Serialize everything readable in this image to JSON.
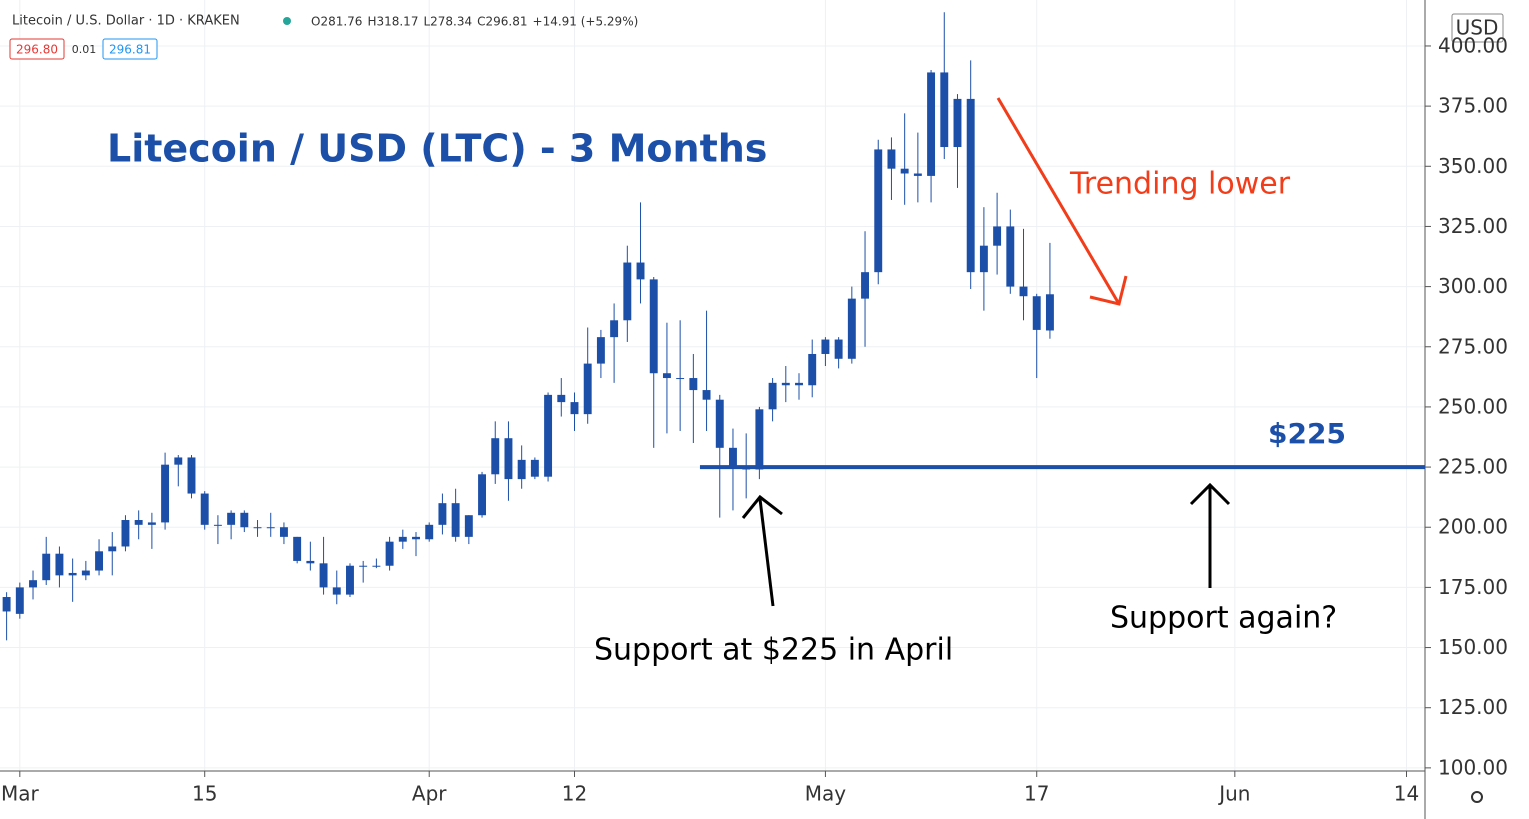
{
  "chart_data": {
    "type": "candlestick",
    "title": "Litecoin / USD (LTC) - 3 Months",
    "symbol": "Litecoin / U.S. Dollar · 1D · KRAKEN",
    "ohlc_readout": [
      "O281.76",
      "H318.17",
      "L278.34",
      "C296.81",
      "+14.91 (+5.29%)"
    ],
    "bid": "296.80",
    "spread": "0.01",
    "ask": "296.81",
    "currency": "USD",
    "color": "#1c4fa8",
    "x": [
      -1,
      0,
      1,
      2,
      3,
      4,
      5,
      6,
      7,
      8,
      9,
      10,
      11,
      12,
      13,
      14,
      15,
      16,
      17,
      18,
      19,
      20,
      21,
      22,
      23,
      24,
      25,
      26,
      27,
      28,
      29,
      30,
      31,
      32,
      33,
      34,
      35,
      36,
      37,
      38,
      39,
      40,
      41,
      42,
      43,
      44,
      45,
      46,
      47,
      48,
      49,
      50,
      51,
      52,
      53,
      54,
      55,
      56,
      57,
      58,
      59,
      60,
      61,
      62,
      63,
      64,
      65,
      66,
      67,
      68,
      69,
      70,
      71,
      72,
      73,
      74,
      75,
      76,
      77,
      78
    ],
    "open": [
      165,
      164,
      175,
      178,
      180,
      181,
      180,
      182,
      190,
      192,
      203,
      201,
      202,
      226,
      229,
      214,
      201,
      201,
      206,
      200,
      200,
      200,
      196,
      186,
      185,
      175,
      172,
      184,
      184,
      184,
      194,
      196,
      195,
      201,
      210,
      196,
      205,
      222,
      237,
      220,
      228,
      221,
      255,
      252,
      247,
      268,
      279,
      286,
      310,
      303,
      264,
      262,
      262,
      257,
      253,
      233,
      225,
      224,
      249,
      260,
      259,
      259,
      272,
      278,
      270,
      295,
      306,
      357,
      349,
      347,
      346,
      389,
      358,
      378,
      306,
      317,
      325,
      300,
      296,
      281.76
    ],
    "high": [
      173,
      177,
      182,
      196,
      192,
      187,
      186,
      195,
      198,
      205,
      207,
      206,
      231,
      230,
      230,
      215,
      205,
      207,
      207,
      203,
      206,
      202,
      196,
      194,
      196,
      182,
      185,
      186,
      187,
      196,
      199,
      198,
      202,
      214,
      216,
      205,
      223,
      244,
      244,
      234,
      229,
      256,
      262,
      256,
      283,
      282,
      293,
      317,
      335,
      304,
      285,
      286,
      272,
      290,
      255,
      241,
      239,
      250,
      262,
      267,
      264,
      278,
      279,
      279,
      300,
      323,
      361,
      362,
      372,
      364,
      390,
      414,
      380,
      394,
      333,
      339,
      332,
      324,
      297,
      318.17
    ],
    "low": [
      153,
      162,
      170,
      176,
      175,
      169,
      178,
      180,
      180,
      190,
      195,
      191,
      199,
      217,
      212,
      199,
      193,
      195,
      198,
      196,
      196,
      193,
      185,
      182,
      172,
      168,
      171,
      177,
      183,
      182,
      191,
      188,
      194,
      197,
      194,
      193,
      204,
      218,
      211,
      216,
      220,
      219,
      246,
      240,
      243,
      262,
      260,
      277,
      293,
      233,
      239,
      240,
      235,
      240,
      204,
      207,
      212,
      220,
      244,
      252,
      253,
      254,
      267,
      266,
      268,
      275,
      301,
      336,
      334,
      335,
      335,
      353,
      341,
      299,
      290,
      305,
      297,
      286,
      262,
      278.34
    ],
    "close": [
      171,
      175,
      178,
      189,
      189,
      180,
      182,
      190,
      192,
      203,
      201,
      202,
      226,
      229,
      214,
      201,
      201,
      206,
      200,
      200,
      200,
      196,
      186,
      185,
      175,
      172,
      184,
      184,
      184,
      194,
      196,
      195,
      201,
      210,
      196,
      205,
      222,
      237,
      220,
      228,
      221,
      255,
      252,
      247,
      268,
      279,
      286,
      310,
      303,
      264,
      262,
      262,
      257,
      253,
      233,
      225,
      224,
      249,
      260,
      259,
      260,
      272,
      278,
      270,
      295,
      306,
      357,
      349,
      347,
      346,
      389,
      358,
      378,
      306,
      317,
      325,
      300,
      296,
      282,
      296.81
    ],
    "xlim": [
      -1.5,
      106.4
    ],
    "xticks": [
      {
        "value": 0,
        "label": "Mar"
      },
      {
        "value": 14,
        "label": "15"
      },
      {
        "value": 31,
        "label": "Apr"
      },
      {
        "value": 42,
        "label": "12"
      },
      {
        "value": 61,
        "label": "May"
      },
      {
        "value": 77,
        "label": "17"
      },
      {
        "value": 92,
        "label": "Jun"
      },
      {
        "value": 105,
        "label": "14"
      }
    ],
    "ylim": [
      98.7,
      419.1
    ],
    "yticks": [
      {
        "value": 100,
        "label": "100.00"
      },
      {
        "value": 125,
        "label": "125.00"
      },
      {
        "value": 150,
        "label": "150.00"
      },
      {
        "value": 175,
        "label": "175.00"
      },
      {
        "value": 200,
        "label": "200.00"
      },
      {
        "value": 225,
        "label": "225.00"
      },
      {
        "value": 250,
        "label": "250.00"
      },
      {
        "value": 275,
        "label": "275.00"
      },
      {
        "value": 300,
        "label": "300.00"
      },
      {
        "value": 325,
        "label": "325.00"
      },
      {
        "value": 350,
        "label": "350.00"
      },
      {
        "value": 375,
        "label": "375.00"
      },
      {
        "value": 400,
        "label": "400.00"
      }
    ],
    "grid": true,
    "support_line": {
      "value": 225,
      "x_start": 51.5,
      "label": "$225",
      "color": "#1c4fa8"
    },
    "annotations": {
      "trend": "Trending lower",
      "support_april": "Support at $225 in April",
      "support_again": "Support again?"
    }
  }
}
